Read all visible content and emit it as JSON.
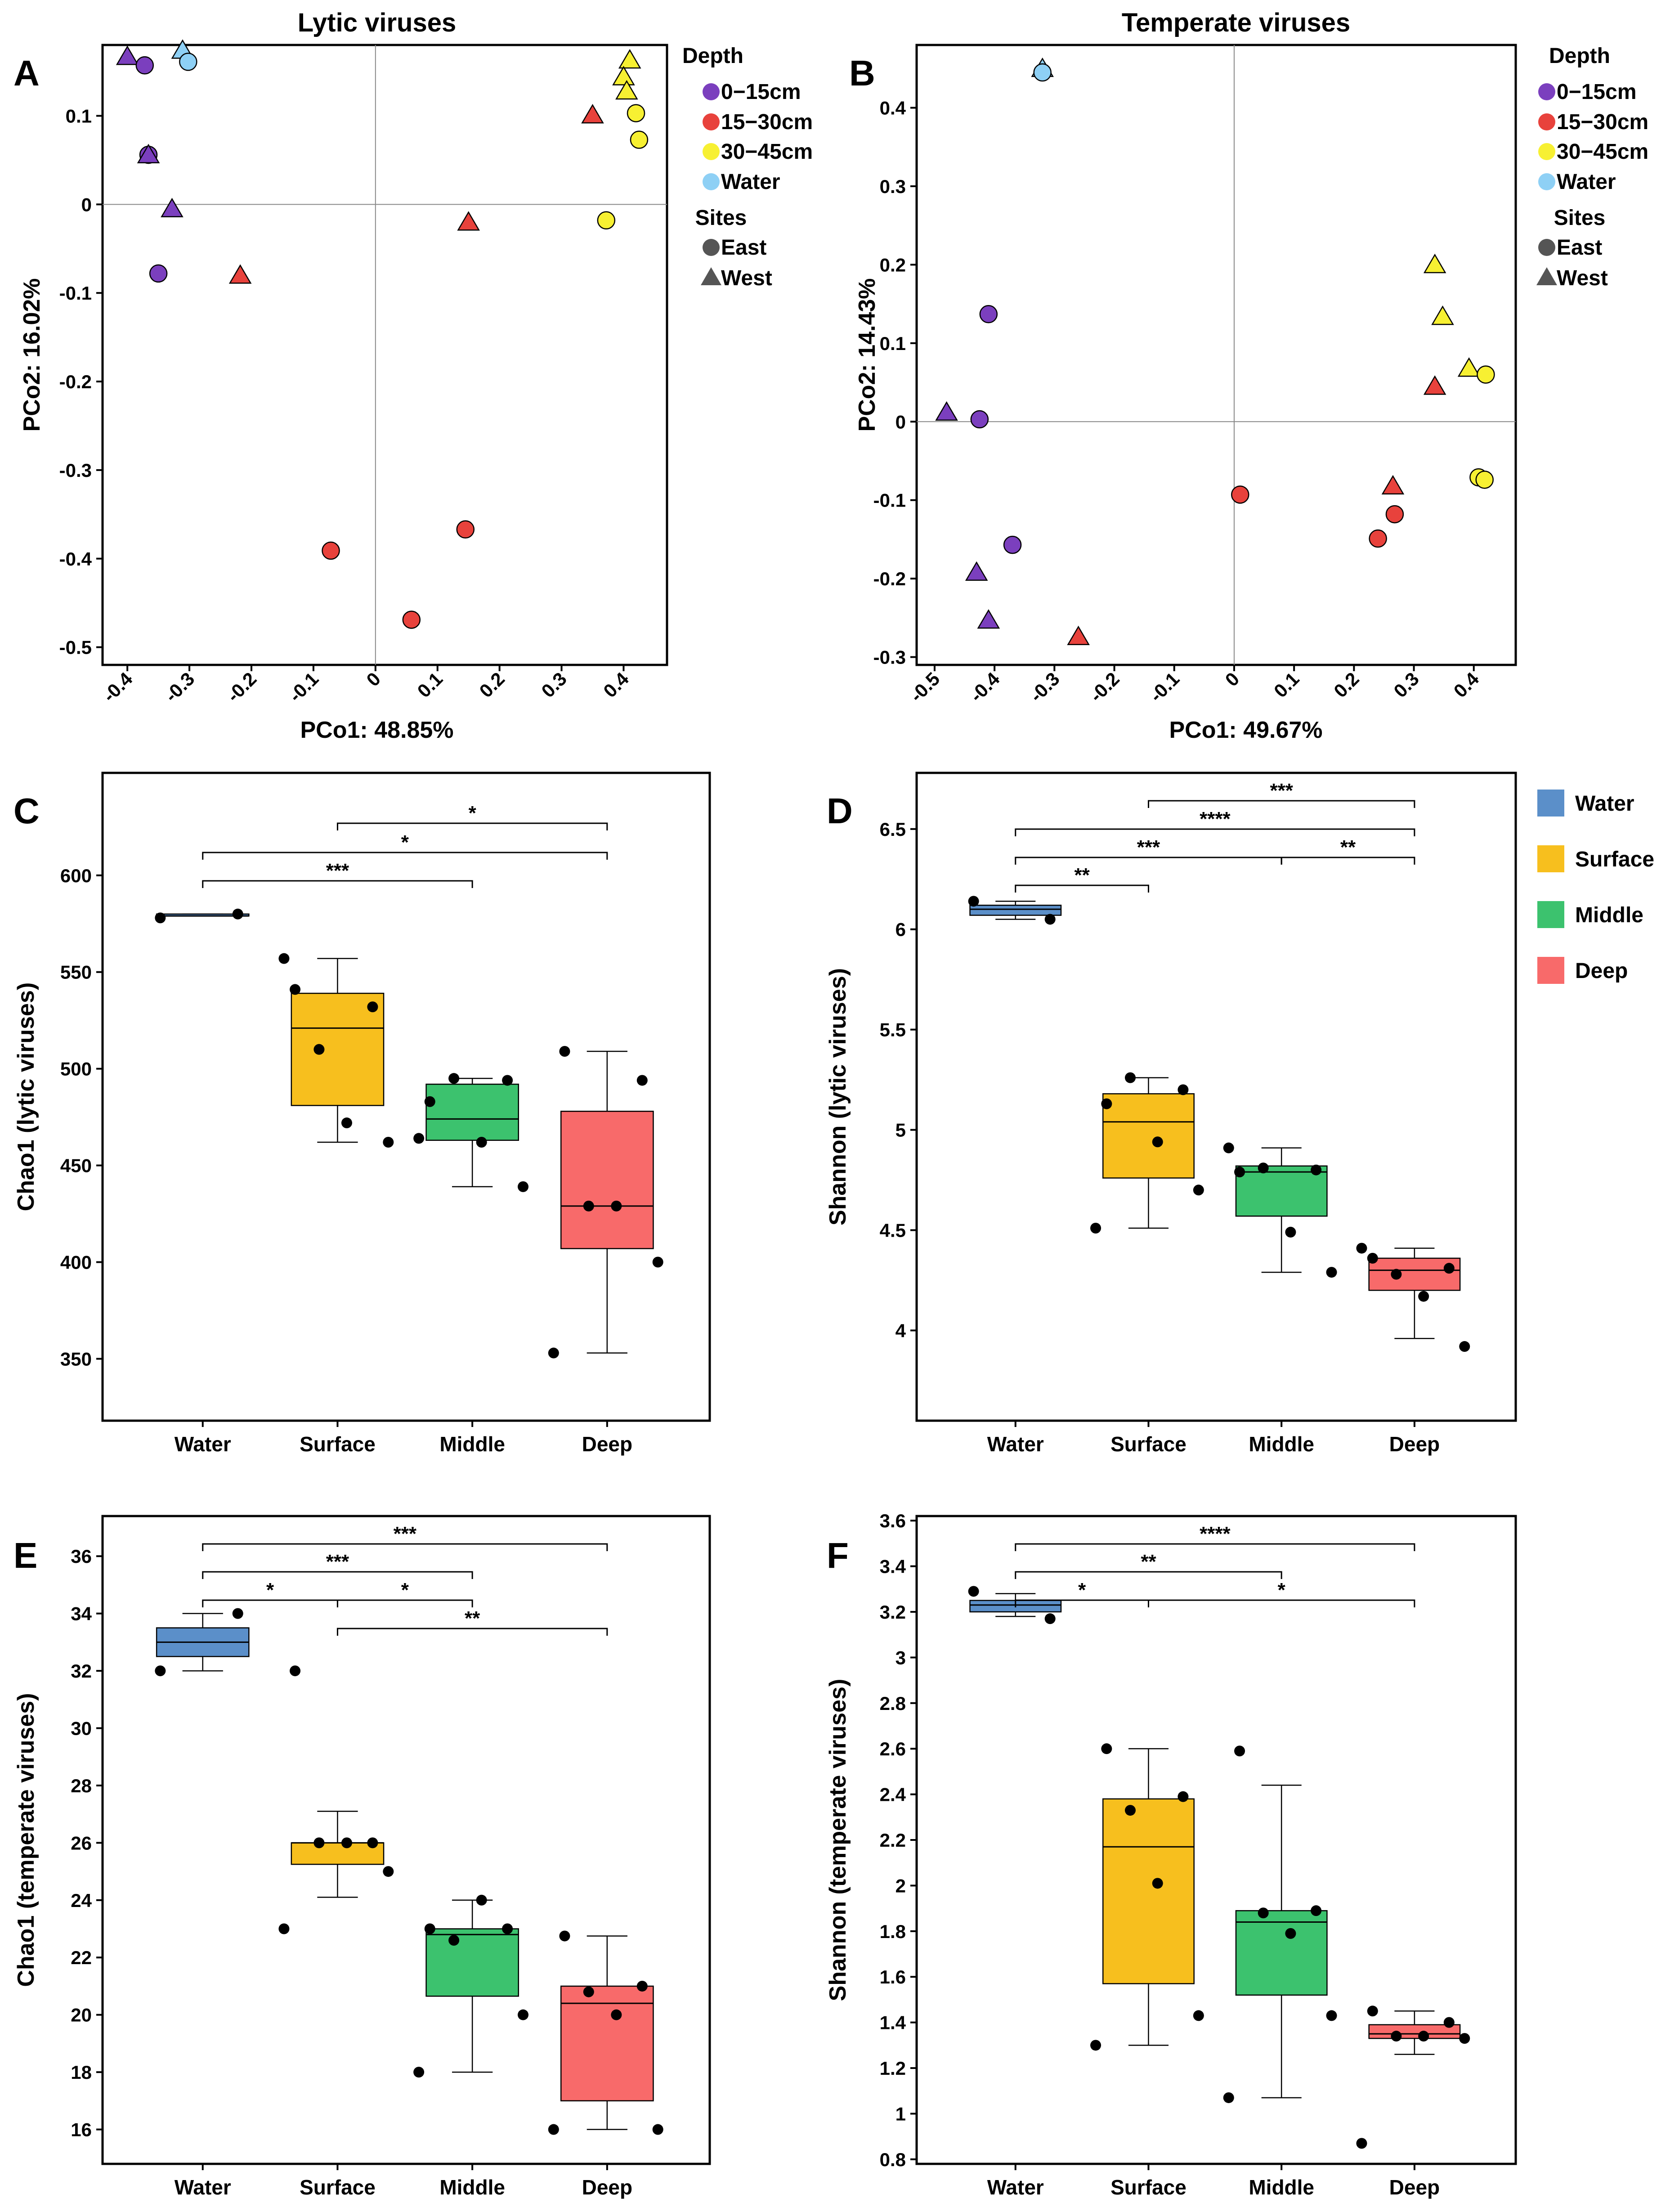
{
  "chart_data": [
    {
      "panel": "A",
      "type": "scatter",
      "title": "Lytic viruses",
      "xlabel": "PCo1: 48.85%",
      "ylabel": "PCo2: 16.02%",
      "xlim": [
        -0.44,
        0.47
      ],
      "ylim": [
        -0.52,
        0.18
      ],
      "xticks": [
        -0.4,
        -0.3,
        -0.2,
        -0.1,
        0,
        0.1,
        0.2,
        0.3,
        0.4
      ],
      "xtick_labels": [
        "-0.4",
        "-0.3",
        "-0.2",
        "-0.1",
        "0",
        "0.1",
        "0.2",
        "0.3",
        "0.4"
      ],
      "yticks": [
        0.1,
        0,
        -0.1,
        -0.2,
        -0.3,
        -0.4,
        -0.5
      ],
      "ytick_labels": [
        "0.1",
        "0",
        "-0.1",
        "-0.2",
        "-0.3",
        "-0.4",
        "-0.5"
      ],
      "legend": {
        "depth_title": "Depth",
        "depth_items": [
          {
            "label": "0−15cm",
            "color": "#7B3FBE"
          },
          {
            "label": "15−30cm",
            "color": "#E8423C"
          },
          {
            "label": "30−45cm",
            "color": "#F7F032"
          },
          {
            "label": "Water",
            "color": "#8ED0F5"
          }
        ],
        "sites_title": "Sites",
        "sites_items": [
          {
            "label": "East",
            "shape": "circle"
          },
          {
            "label": "West",
            "shape": "triangle"
          }
        ]
      },
      "points": [
        {
          "x": -0.4,
          "y": 0.167,
          "depth": "0-15cm",
          "site": "West"
        },
        {
          "x": -0.372,
          "y": 0.157,
          "depth": "0-15cm",
          "site": "East"
        },
        {
          "x": -0.366,
          "y": 0.056,
          "depth": "0-15cm",
          "site": "East"
        },
        {
          "x": -0.366,
          "y": 0.056,
          "depth": "0-15cm",
          "site": "West"
        },
        {
          "x": -0.328,
          "y": -0.005,
          "depth": "0-15cm",
          "site": "West"
        },
        {
          "x": -0.35,
          "y": -0.078,
          "depth": "0-15cm",
          "site": "East"
        },
        {
          "x": -0.311,
          "y": 0.174,
          "depth": "Water",
          "site": "West"
        },
        {
          "x": -0.302,
          "y": 0.161,
          "depth": "Water",
          "site": "East"
        },
        {
          "x": -0.218,
          "y": -0.08,
          "depth": "15-30cm",
          "site": "West"
        },
        {
          "x": 0.15,
          "y": -0.02,
          "depth": "15-30cm",
          "site": "West"
        },
        {
          "x": 0.35,
          "y": 0.101,
          "depth": "15-30cm",
          "site": "West"
        },
        {
          "x": -0.072,
          "y": -0.391,
          "depth": "15-30cm",
          "site": "East"
        },
        {
          "x": 0.145,
          "y": -0.367,
          "depth": "15-30cm",
          "site": "East"
        },
        {
          "x": 0.058,
          "y": -0.469,
          "depth": "15-30cm",
          "site": "East"
        },
        {
          "x": 0.41,
          "y": 0.163,
          "depth": "30-45cm",
          "site": "West"
        },
        {
          "x": 0.4,
          "y": 0.144,
          "depth": "30-45cm",
          "site": "West"
        },
        {
          "x": 0.405,
          "y": 0.128,
          "depth": "30-45cm",
          "site": "West"
        },
        {
          "x": 0.42,
          "y": 0.103,
          "depth": "30-45cm",
          "site": "East"
        },
        {
          "x": 0.425,
          "y": 0.073,
          "depth": "30-45cm",
          "site": "East"
        },
        {
          "x": 0.372,
          "y": -0.018,
          "depth": "30-45cm",
          "site": "East"
        }
      ]
    },
    {
      "panel": "B",
      "type": "scatter",
      "title": "Temperate viruses",
      "xlabel": "PCo1: 49.67%",
      "ylabel": "PCo2: 14.43%",
      "xlim": [
        -0.53,
        0.47
      ],
      "ylim": [
        -0.31,
        0.48
      ],
      "xticks": [
        -0.5,
        -0.4,
        -0.3,
        -0.2,
        -0.1,
        0,
        0.1,
        0.2,
        0.3,
        0.4
      ],
      "xtick_labels": [
        "-0.5",
        "-0.4",
        "-0.3",
        "-0.2",
        "-0.1",
        "0",
        "0.1",
        "0.2",
        "0.3",
        "0.4"
      ],
      "yticks": [
        0.4,
        0.3,
        0.2,
        0.1,
        0,
        -0.1,
        -0.2,
        -0.3
      ],
      "ytick_labels": [
        "0.4",
        "0.3",
        "0.2",
        "0.1",
        "0",
        "-0.1",
        "-0.2",
        "-0.3"
      ],
      "legend": {
        "depth_title": "Depth",
        "depth_items": [
          {
            "label": "0−15cm",
            "color": "#7B3FBE"
          },
          {
            "label": "15−30cm",
            "color": "#E8423C"
          },
          {
            "label": "30−45cm",
            "color": "#F7F032"
          },
          {
            "label": "Water",
            "color": "#8ED0F5"
          }
        ],
        "sites_title": "Sites",
        "sites_items": [
          {
            "label": "East",
            "shape": "circle"
          },
          {
            "label": "West",
            "shape": "triangle"
          }
        ]
      },
      "points": [
        {
          "x": -0.32,
          "y": 0.45,
          "depth": "Water",
          "site": "West"
        },
        {
          "x": -0.32,
          "y": 0.445,
          "depth": "Water",
          "site": "East"
        },
        {
          "x": -0.41,
          "y": 0.137,
          "depth": "0-15cm",
          "site": "East"
        },
        {
          "x": -0.48,
          "y": 0.012,
          "depth": "0-15cm",
          "site": "West"
        },
        {
          "x": -0.425,
          "y": 0.003,
          "depth": "0-15cm",
          "site": "East"
        },
        {
          "x": -0.37,
          "y": -0.157,
          "depth": "0-15cm",
          "site": "East"
        },
        {
          "x": -0.43,
          "y": -0.192,
          "depth": "0-15cm",
          "site": "West"
        },
        {
          "x": -0.41,
          "y": -0.253,
          "depth": "0-15cm",
          "site": "West"
        },
        {
          "x": -0.26,
          "y": -0.274,
          "depth": "15-30cm",
          "site": "West"
        },
        {
          "x": 0.01,
          "y": -0.093,
          "depth": "15-30cm",
          "site": "East"
        },
        {
          "x": 0.265,
          "y": -0.082,
          "depth": "15-30cm",
          "site": "West"
        },
        {
          "x": 0.268,
          "y": -0.118,
          "depth": "15-30cm",
          "site": "East"
        },
        {
          "x": 0.24,
          "y": -0.149,
          "depth": "15-30cm",
          "site": "East"
        },
        {
          "x": 0.335,
          "y": 0.045,
          "depth": "15-30cm",
          "site": "West"
        },
        {
          "x": 0.335,
          "y": 0.2,
          "depth": "30-45cm",
          "site": "West"
        },
        {
          "x": 0.348,
          "y": 0.134,
          "depth": "30-45cm",
          "site": "West"
        },
        {
          "x": 0.392,
          "y": 0.068,
          "depth": "30-45cm",
          "site": "West"
        },
        {
          "x": 0.42,
          "y": 0.06,
          "depth": "30-45cm",
          "site": "East"
        },
        {
          "x": 0.408,
          "y": -0.071,
          "depth": "30-45cm",
          "site": "East"
        },
        {
          "x": 0.418,
          "y": -0.074,
          "depth": "30-45cm",
          "site": "East"
        }
      ]
    },
    {
      "panel": "C",
      "type": "box",
      "ylabel": "Chao1 (lytic viruses)",
      "categories": [
        "Water",
        "Surface",
        "Middle",
        "Deep"
      ],
      "colors": [
        "#5B8FC9",
        "#F7BF1E",
        "#3CC26E",
        "#F86A6A"
      ],
      "ylim": [
        318,
        653
      ],
      "yticks": [
        350,
        400,
        450,
        500,
        550,
        600
      ],
      "ytick_labels": [
        "350",
        "400",
        "450",
        "500",
        "550",
        "600"
      ],
      "boxes": [
        {
          "q1": 579,
          "median": 579,
          "q3": 580,
          "whisker_low": 579,
          "whisker_high": 580
        },
        {
          "q1": 481,
          "median": 521,
          "q3": 539,
          "whisker_low": 462,
          "whisker_high": 557
        },
        {
          "q1": 463,
          "median": 474,
          "q3": 492,
          "whisker_low": 439,
          "whisker_high": 495
        },
        {
          "q1": 407,
          "median": 429,
          "q3": 478,
          "whisker_low": 353,
          "whisker_high": 509
        }
      ],
      "points": [
        [
          578,
          580
        ],
        [
          541,
          532,
          510,
          472,
          462,
          557
        ],
        [
          483,
          494,
          495,
          462,
          439,
          464
        ],
        [
          509,
          494,
          429,
          429,
          400,
          353
        ]
      ],
      "comparisons": [
        {
          "from": "Surface",
          "to": "Deep",
          "label": "*"
        },
        {
          "from": "Water",
          "to": "Deep",
          "label": "*"
        },
        {
          "from": "Water",
          "to": "Middle",
          "label": "***"
        }
      ]
    },
    {
      "panel": "D",
      "type": "box",
      "ylabel": "Shannon (lytic viruses)",
      "categories": [
        "Water",
        "Surface",
        "Middle",
        "Deep"
      ],
      "colors": [
        "#5B8FC9",
        "#F7BF1E",
        "#3CC26E",
        "#F86A6A"
      ],
      "ylim": [
        3.55,
        6.78
      ],
      "yticks": [
        4,
        4.5,
        5,
        5.5,
        6,
        6.5
      ],
      "ytick_labels": [
        "4",
        "4.5",
        "5",
        "5.5",
        "6",
        "6.5"
      ],
      "legend_items": [
        "Water",
        "Surface",
        "Middle",
        "Deep"
      ],
      "boxes": [
        {
          "q1": 6.07,
          "median": 6.1,
          "q3": 6.12,
          "whisker_low": 6.05,
          "whisker_high": 6.14
        },
        {
          "q1": 4.76,
          "median": 5.04,
          "q3": 5.18,
          "whisker_low": 4.51,
          "whisker_high": 5.26
        },
        {
          "q1": 4.57,
          "median": 4.79,
          "q3": 4.82,
          "whisker_low": 4.29,
          "whisker_high": 4.91
        },
        {
          "q1": 4.2,
          "median": 4.3,
          "q3": 4.36,
          "whisker_low": 3.96,
          "whisker_high": 4.41
        }
      ],
      "points": [
        [
          6.14,
          6.05
        ],
        [
          5.13,
          5.2,
          5.26,
          4.94,
          4.7,
          4.51
        ],
        [
          4.79,
          4.8,
          4.81,
          4.49,
          4.29,
          4.91
        ],
        [
          4.36,
          4.31,
          4.28,
          4.17,
          3.92,
          4.41
        ]
      ],
      "comparisons": [
        {
          "from": "Surface",
          "to": "Deep",
          "label": "***"
        },
        {
          "from": "Water",
          "to": "Deep",
          "label": "****"
        },
        {
          "from": "Water",
          "to": "Middle",
          "label": "***"
        },
        {
          "from": "Middle",
          "to": "Deep",
          "label": "**"
        },
        {
          "from": "Water",
          "to": "Surface",
          "label": "**"
        }
      ]
    },
    {
      "panel": "E",
      "type": "box",
      "ylabel": "Chao1 (temperate viruses)",
      "categories": [
        "Water",
        "Surface",
        "Middle",
        "Deep"
      ],
      "colors": [
        "#5B8FC9",
        "#F7BF1E",
        "#3CC26E",
        "#F86A6A"
      ],
      "ylim": [
        14.8,
        37.4
      ],
      "yticks": [
        16,
        18,
        20,
        22,
        24,
        26,
        28,
        30,
        32,
        34,
        36
      ],
      "ytick_labels": [
        "16",
        "18",
        "20",
        "22",
        "24",
        "26",
        "28",
        "30",
        "32",
        "34",
        "36"
      ],
      "boxes": [
        {
          "q1": 32.5,
          "median": 33.0,
          "q3": 33.5,
          "whisker_low": 32,
          "whisker_high": 34
        },
        {
          "q1": 25.25,
          "median": 26.0,
          "q3": 26.0,
          "whisker_low": 24.1,
          "whisker_high": 27.1
        },
        {
          "q1": 20.65,
          "median": 22.8,
          "q3": 23.0,
          "whisker_low": 18,
          "whisker_high": 24
        },
        {
          "q1": 17.0,
          "median": 20.4,
          "q3": 21.0,
          "whisker_low": 16,
          "whisker_high": 22.75
        }
      ],
      "points": [
        [
          32,
          34
        ],
        [
          32,
          26,
          26,
          26,
          25,
          23
        ],
        [
          23,
          23,
          22.6,
          24,
          20,
          18
        ],
        [
          22.75,
          21,
          20.8,
          20,
          16,
          16
        ]
      ],
      "comparisons": [
        {
          "from": "Water",
          "to": "Deep",
          "label": "***"
        },
        {
          "from": "Water",
          "to": "Middle",
          "label": "***"
        },
        {
          "from": "Water",
          "to": "Surface",
          "label": "*"
        },
        {
          "from": "Surface",
          "to": "Middle",
          "label": "*"
        },
        {
          "from": "Surface",
          "to": "Deep",
          "label": "**"
        }
      ]
    },
    {
      "panel": "F",
      "type": "box",
      "ylabel": "Shannon (temperate viruses)",
      "categories": [
        "Water",
        "Surface",
        "Middle",
        "Deep"
      ],
      "colors": [
        "#5B8FC9",
        "#F7BF1E",
        "#3CC26E",
        "#F86A6A"
      ],
      "ylim": [
        0.78,
        3.62
      ],
      "yticks": [
        0.8,
        1,
        1.2,
        1.4,
        1.6,
        1.8,
        2,
        2.2,
        2.4,
        2.6,
        2.8,
        3,
        3.2,
        3.4,
        3.6
      ],
      "ytick_labels": [
        "0.8",
        "1",
        "1.2",
        "1.4",
        "1.6",
        "1.8",
        "2",
        "2.2",
        "2.4",
        "2.6",
        "2.8",
        "3",
        "3.2",
        "3.4",
        "3.6"
      ],
      "boxes": [
        {
          "q1": 3.2,
          "median": 3.23,
          "q3": 3.25,
          "whisker_low": 3.18,
          "whisker_high": 3.28
        },
        {
          "q1": 1.57,
          "median": 2.17,
          "q3": 2.38,
          "whisker_low": 1.3,
          "whisker_high": 2.6
        },
        {
          "q1": 1.52,
          "median": 1.84,
          "q3": 1.89,
          "whisker_low": 1.07,
          "whisker_high": 2.44
        },
        {
          "q1": 1.33,
          "median": 1.35,
          "q3": 1.39,
          "whisker_low": 1.26,
          "whisker_high": 1.45
        }
      ],
      "points": [
        [
          3.29,
          3.17
        ],
        [
          2.6,
          2.39,
          2.33,
          2.01,
          1.43,
          1.3
        ],
        [
          2.59,
          1.89,
          1.88,
          1.79,
          1.43,
          1.07
        ],
        [
          1.45,
          1.4,
          1.34,
          1.34,
          1.33,
          0.87
        ]
      ],
      "comparisons": [
        {
          "from": "Water",
          "to": "Deep",
          "label": "****"
        },
        {
          "from": "Water",
          "to": "Middle",
          "label": "**"
        },
        {
          "from": "Water",
          "to": "Surface",
          "label": "*"
        },
        {
          "from": "Surface",
          "to": "Deep",
          "label": "*"
        }
      ]
    }
  ]
}
